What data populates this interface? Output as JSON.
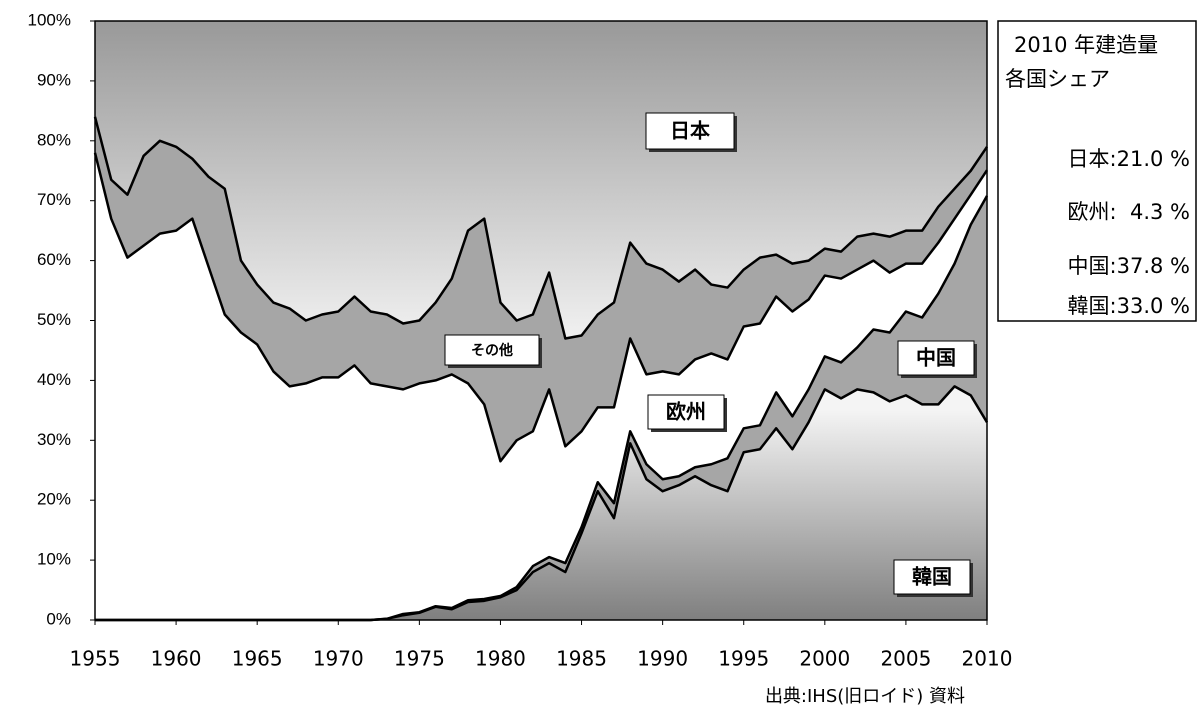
{
  "chart_data": {
    "type": "stacked_area",
    "source": "出典:IHS(旧ロイド) 資料",
    "x": [
      1955,
      1956,
      1957,
      1958,
      1959,
      1960,
      1961,
      1962,
      1963,
      1964,
      1965,
      1966,
      1967,
      1968,
      1969,
      1970,
      1971,
      1972,
      1973,
      1974,
      1975,
      1976,
      1977,
      1978,
      1979,
      1980,
      1981,
      1982,
      1983,
      1984,
      1985,
      1986,
      1987,
      1988,
      1989,
      1990,
      1991,
      1992,
      1993,
      1994,
      1995,
      1996,
      1997,
      1998,
      1999,
      2000,
      2001,
      2002,
      2003,
      2004,
      2005,
      2006,
      2007,
      2008,
      2009,
      2010
    ],
    "xlim": [
      1955,
      2010
    ],
    "xticks": [
      1955,
      1960,
      1965,
      1970,
      1975,
      1980,
      1985,
      1990,
      1995,
      2000,
      2005,
      2010
    ],
    "ylim": [
      0,
      100
    ],
    "yticks": [
      {
        "value": 0,
        "label": "0%"
      },
      {
        "value": 10,
        "label": "10%"
      },
      {
        "value": 20,
        "label": "20%"
      },
      {
        "value": 30,
        "label": "30%"
      },
      {
        "value": 40,
        "label": "40%"
      },
      {
        "value": 50,
        "label": "50%"
      },
      {
        "value": 60,
        "label": "60%"
      },
      {
        "value": 70,
        "label": "70%"
      },
      {
        "value": 80,
        "label": "80%"
      },
      {
        "value": 90,
        "label": "90%"
      },
      {
        "value": 100,
        "label": "100%"
      }
    ],
    "series": [
      {
        "name": "韓国",
        "color": "#7f7f7f",
        "gradient": true,
        "values": [
          0,
          0,
          0,
          0,
          0,
          0,
          0,
          0,
          0,
          0,
          0,
          0,
          0,
          0,
          0,
          0,
          0,
          0,
          0.2,
          0.8,
          1.2,
          2.2,
          1.8,
          3,
          3.2,
          3.8,
          5,
          8,
          9.5,
          8,
          14.5,
          21.5,
          17,
          29.5,
          23.5,
          21.5,
          22.5,
          24,
          22.5,
          21.5,
          28,
          28.5,
          32,
          28.5,
          33,
          38.5,
          37,
          38.5,
          38,
          36.5,
          37.5,
          36,
          36,
          39,
          37.5,
          33
        ]
      },
      {
        "name": "中国",
        "color": "#a6a6a6",
        "gradient": false,
        "values": [
          0,
          0,
          0,
          0,
          0,
          0,
          0,
          0,
          0,
          0,
          0,
          0,
          0,
          0,
          0,
          0,
          0,
          0,
          0,
          0.2,
          0.1,
          0.1,
          0.2,
          0.3,
          0.3,
          0.2,
          0.5,
          1,
          1,
          1.5,
          1,
          1.5,
          2.5,
          2,
          2.5,
          2,
          1.5,
          1.5,
          3.5,
          5.5,
          4,
          4,
          6,
          5.5,
          5.5,
          5.5,
          6,
          7,
          10.5,
          11.5,
          14,
          14.5,
          18.5,
          20.5,
          28.5,
          37.8
        ]
      },
      {
        "name": "欧州",
        "color": "#ffffff",
        "gradient": false,
        "values": [
          78,
          67,
          60.5,
          62.5,
          64.5,
          65,
          67,
          59,
          51,
          48,
          46,
          41.5,
          39,
          39.5,
          40.5,
          40.5,
          42.5,
          39.5,
          38.8,
          37.5,
          38.2,
          37.7,
          39,
          36.2,
          32.5,
          22.5,
          24.5,
          22.5,
          28,
          19.5,
          16,
          12.5,
          16,
          15.5,
          15,
          18,
          17,
          18,
          18.5,
          16.5,
          17,
          17,
          16,
          17.5,
          15,
          13.5,
          14,
          13,
          11.5,
          10,
          8,
          9,
          8.5,
          7.5,
          5,
          4.3
        ]
      },
      {
        "name": "その他",
        "color": "#a6a6a6",
        "gradient": false,
        "values": [
          6,
          6.5,
          10.5,
          15,
          15.5,
          14,
          10,
          15,
          21,
          12,
          10,
          11.5,
          13,
          10.5,
          10.5,
          11,
          11.5,
          12,
          12,
          11,
          10.5,
          13,
          16,
          25.5,
          31,
          26.5,
          20,
          19.5,
          19.5,
          18,
          16,
          15.5,
          17.5,
          16,
          18.5,
          17,
          15.5,
          15,
          11.5,
          12,
          9.5,
          11,
          7,
          8,
          6.5,
          4.5,
          4.5,
          5.5,
          4.5,
          6,
          5.5,
          5.5,
          6,
          5,
          4,
          3.9
        ]
      },
      {
        "name": "日本",
        "color": "#999999",
        "gradient": true,
        "values": [
          16,
          26.5,
          29,
          22.5,
          20,
          21,
          23,
          26,
          28,
          40,
          44,
          47,
          48,
          50,
          49,
          48.5,
          46,
          48.5,
          49,
          50.5,
          50,
          47,
          43,
          35,
          33,
          47,
          50,
          49,
          42,
          53,
          52.5,
          49,
          47,
          37,
          40.5,
          41.5,
          43.5,
          41.5,
          44,
          44.5,
          41.5,
          39.5,
          39,
          40.5,
          40,
          38,
          38.5,
          36,
          35.5,
          36,
          35,
          35,
          31,
          28,
          25,
          21
        ]
      }
    ],
    "share_box": {
      "lines": [
        "2010 年建造量",
        "各国シェア"
      ],
      "rows": [
        "日本:21.0 %",
        "欧州:  4.3 %",
        "中国:37.8 %",
        "韓国:33.0 %"
      ]
    }
  }
}
